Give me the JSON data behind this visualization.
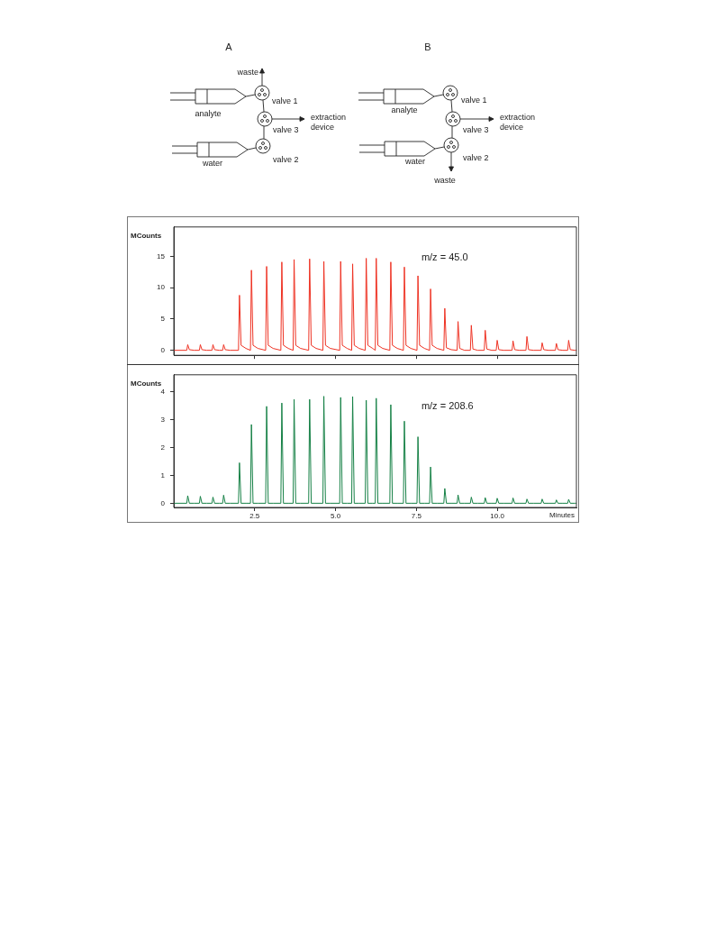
{
  "chart_data": [
    {
      "type": "other",
      "title": "A",
      "annotations": [
        "waste",
        "valve 1",
        "analyte",
        "valve 3",
        "extraction device",
        "water",
        "valve 2"
      ]
    },
    {
      "type": "other",
      "title": "B",
      "annotations": [
        "valve 1",
        "analyte",
        "valve 3",
        "extraction device",
        "water",
        "valve 2",
        "waste"
      ]
    },
    {
      "type": "line",
      "ylabel": "MCounts",
      "annotations": [
        "m/z = 45.0"
      ],
      "legend": false,
      "marker": "none",
      "tick_labels": "y",
      "xlim": [
        0,
        12.45
      ],
      "xticks": [
        2.5,
        5,
        7.5,
        10
      ],
      "ylim": [
        -0.8,
        19.7
      ],
      "yticks": [
        0,
        5,
        10,
        15
      ],
      "x": [
        0,
        0.4,
        0.43,
        0.48,
        0.63,
        0.79,
        0.82,
        0.87,
        1.02,
        1.18,
        1.21,
        1.26,
        1.41,
        1.51,
        1.54,
        1.59,
        1.74,
        2.0,
        2.03,
        2.08,
        2.23,
        2.37,
        2.4,
        2.45,
        2.6,
        2.84,
        2.87,
        2.92,
        3.07,
        3.31,
        3.34,
        3.39,
        3.54,
        3.69,
        3.72,
        3.77,
        3.92,
        4.17,
        4.2,
        4.25,
        4.4,
        4.61,
        4.64,
        4.69,
        4.84,
        5.13,
        5.16,
        5.21,
        5.36,
        5.5,
        5.53,
        5.58,
        5.73,
        5.92,
        5.95,
        6.0,
        6.15,
        6.23,
        6.26,
        6.31,
        6.46,
        6.68,
        6.71,
        6.76,
        6.91,
        7.1,
        7.13,
        7.18,
        7.33,
        7.52,
        7.55,
        7.6,
        7.75,
        7.91,
        7.94,
        7.99,
        8.14,
        8.35,
        8.38,
        8.43,
        8.58,
        8.76,
        8.79,
        8.84,
        8.99,
        9.17,
        9.2,
        9.25,
        9.4,
        9.6,
        9.63,
        9.68,
        9.83,
        9.97,
        10.0,
        10.05,
        10.2,
        10.46,
        10.49,
        10.54,
        10.69,
        10.89,
        10.92,
        10.97,
        11.12,
        11.36,
        11.39,
        11.44,
        11.59,
        11.8,
        11.83,
        11.88,
        12.03,
        12.18,
        12.21,
        12.26,
        12.41,
        12.45
      ],
      "series": [
        {
          "color": "#ee3324",
          "values": [
            0,
            0,
            0.9,
            0.1,
            0,
            0,
            0.9,
            0.1,
            0,
            0,
            0.9,
            0.1,
            0,
            0,
            0.9,
            0.1,
            0,
            0,
            8.8,
            0.8,
            0.3,
            0,
            12.8,
            0.8,
            0.3,
            0,
            13.4,
            0.8,
            0.3,
            0,
            14.1,
            0.8,
            0.3,
            0,
            14.5,
            0.8,
            0.3,
            0,
            14.6,
            0.8,
            0.3,
            0,
            14.2,
            0.8,
            0.3,
            0,
            14.2,
            0.8,
            0.3,
            0,
            13.8,
            0.8,
            0.3,
            0,
            14.7,
            0.8,
            0.3,
            0,
            14.7,
            0.8,
            0.3,
            0,
            14.1,
            0.8,
            0.3,
            0,
            13.3,
            0.8,
            0.3,
            0,
            11.9,
            0.8,
            0.3,
            0,
            9.8,
            0.8,
            0.3,
            0,
            6.7,
            0.4,
            0.1,
            0,
            4.6,
            0.3,
            0,
            0,
            4.0,
            0.2,
            0,
            0,
            3.2,
            0.2,
            0,
            0,
            1.6,
            0.1,
            0,
            0,
            1.5,
            0.1,
            0,
            0,
            2.2,
            0.1,
            0,
            0,
            1.2,
            0.1,
            0,
            0,
            1.1,
            0.1,
            0,
            0,
            1.6,
            0.1,
            0,
            0
          ]
        }
      ]
    },
    {
      "type": "line",
      "ylabel": "MCounts",
      "xlabel": "Minutes",
      "annotations": [
        "m/z = 208.6"
      ],
      "legend": false,
      "marker": "none",
      "xlim": [
        0,
        12.45
      ],
      "xticks": [
        {
          "value": 2.5,
          "label": "2.5"
        },
        {
          "value": 5,
          "label": "5.0"
        },
        {
          "value": 7.5,
          "label": "7.5"
        },
        {
          "value": 10,
          "label": "10.0"
        }
      ],
      "ylim": [
        -0.15,
        4.6
      ],
      "yticks": [
        0,
        1,
        2,
        3,
        4
      ],
      "x": [
        0,
        0.4,
        0.43,
        0.48,
        0.63,
        0.79,
        0.82,
        0.87,
        1.02,
        1.18,
        1.21,
        1.26,
        1.41,
        1.51,
        1.54,
        1.59,
        1.74,
        2.0,
        2.03,
        2.08,
        2.23,
        2.37,
        2.4,
        2.45,
        2.6,
        2.84,
        2.87,
        2.92,
        3.07,
        3.31,
        3.34,
        3.39,
        3.54,
        3.69,
        3.72,
        3.77,
        3.92,
        4.17,
        4.2,
        4.25,
        4.4,
        4.61,
        4.64,
        4.69,
        4.84,
        5.13,
        5.16,
        5.21,
        5.36,
        5.5,
        5.53,
        5.58,
        5.73,
        5.92,
        5.95,
        6.0,
        6.15,
        6.23,
        6.26,
        6.31,
        6.46,
        6.68,
        6.71,
        6.76,
        6.91,
        7.1,
        7.13,
        7.18,
        7.33,
        7.52,
        7.55,
        7.6,
        7.75,
        7.91,
        7.94,
        7.99,
        8.14,
        8.35,
        8.38,
        8.43,
        8.58,
        8.76,
        8.79,
        8.84,
        8.99,
        9.17,
        9.2,
        9.25,
        9.4,
        9.6,
        9.63,
        9.68,
        9.83,
        9.97,
        10.0,
        10.05,
        10.2,
        10.46,
        10.49,
        10.54,
        10.69,
        10.89,
        10.92,
        10.97,
        11.12,
        11.36,
        11.39,
        11.44,
        11.59,
        11.8,
        11.83,
        11.88,
        12.03,
        12.18,
        12.21,
        12.26,
        12.41,
        12.45
      ],
      "series": [
        {
          "color": "#168146",
          "values": [
            0,
            0,
            0.27,
            0,
            0,
            0,
            0.25,
            0,
            0,
            0,
            0.22,
            0,
            0,
            0,
            0.29,
            0,
            0,
            0,
            1.45,
            0,
            0,
            0,
            2.82,
            0,
            0,
            0,
            3.47,
            0,
            0,
            0,
            3.59,
            0,
            0,
            0,
            3.72,
            0,
            0,
            0,
            3.72,
            0,
            0,
            0,
            3.83,
            0,
            0,
            0,
            3.79,
            0,
            0,
            0,
            3.82,
            0,
            0,
            0,
            3.69,
            0,
            0,
            0,
            3.76,
            0,
            0,
            0,
            3.53,
            0,
            0,
            0,
            2.94,
            0,
            0,
            0,
            2.38,
            0,
            0,
            0,
            1.3,
            0,
            0,
            0,
            0.53,
            0,
            0,
            0,
            0.3,
            0,
            0,
            0,
            0.22,
            0,
            0,
            0,
            0.2,
            0,
            0,
            0,
            0.18,
            0,
            0,
            0,
            0.19,
            0,
            0,
            0,
            0.15,
            0,
            0,
            0,
            0.15,
            0,
            0,
            0,
            0.12,
            0,
            0,
            0,
            0.14,
            0,
            0,
            0
          ]
        }
      ]
    }
  ]
}
